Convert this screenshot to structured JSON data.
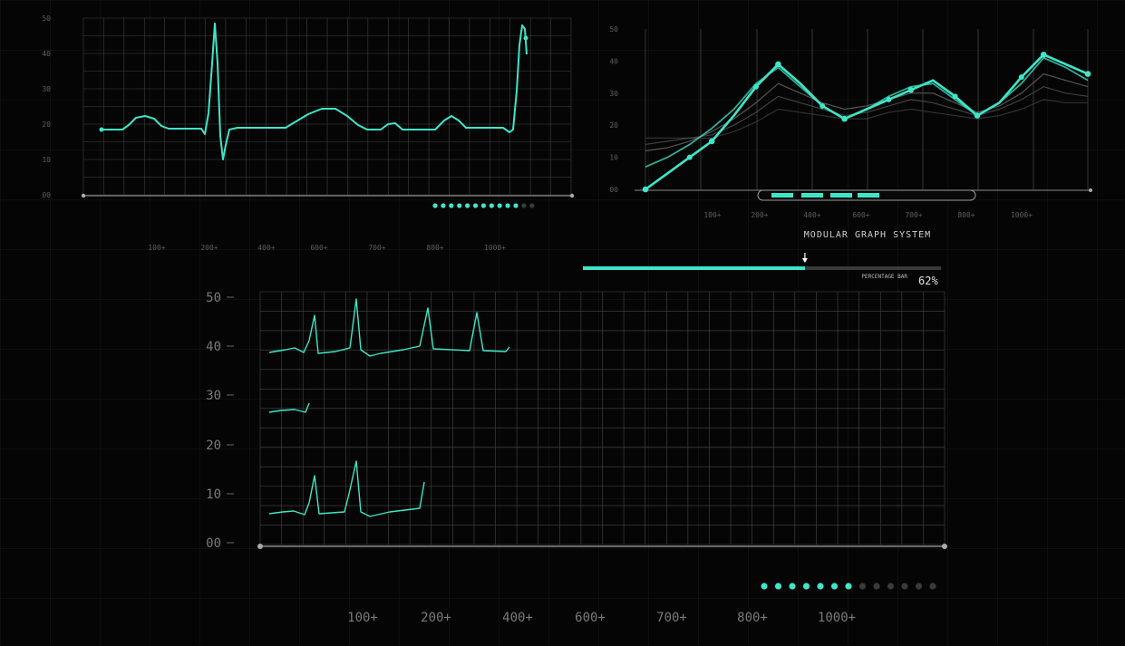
{
  "colors": {
    "accent": "#3ee6c8",
    "grid": "#8a8a8a",
    "dim": "#444444",
    "background": "#050505"
  },
  "title": "MODULAR GRAPH SYSTEM",
  "percentage_bar": {
    "label": "PERCENTAGE BAR",
    "value": 62,
    "display": "62%"
  },
  "chart_data": [
    {
      "type": "line",
      "yticks": [
        "00",
        "10",
        "20",
        "30",
        "40",
        "50"
      ],
      "xticks": [
        "100+",
        "200+",
        "400+",
        "600+",
        "700+",
        "800+",
        "1000+"
      ],
      "ylim": [
        0,
        50
      ],
      "indicator": {
        "total": 13,
        "active": 11
      }
    },
    {
      "type": "line",
      "yticks": [
        "00",
        "10",
        "20",
        "30",
        "40",
        "50"
      ],
      "xticks": [
        "100+",
        "200+",
        "400+",
        "600+",
        "700+",
        "800+",
        "1000+"
      ],
      "ylim": [
        0,
        50
      ],
      "x": [
        0,
        1,
        2,
        3,
        4,
        5,
        6,
        7,
        8,
        9,
        10,
        11,
        12,
        13,
        14,
        15,
        16,
        17,
        18,
        19,
        20
      ],
      "series": [
        {
          "values": [
            0,
            5,
            10,
            15,
            23,
            32,
            39,
            33,
            26,
            22,
            25,
            28,
            31,
            34,
            29,
            23,
            27,
            35,
            42,
            39,
            36
          ]
        },
        {
          "values": [
            7,
            10,
            14,
            19,
            25,
            33,
            38,
            32,
            26,
            22,
            25,
            29,
            32,
            33,
            28,
            23,
            27,
            33,
            41,
            38,
            34
          ]
        },
        {
          "values": [
            12,
            13,
            15,
            18,
            22,
            27,
            33,
            30,
            27,
            25,
            26,
            28,
            30,
            30,
            27,
            24,
            26,
            30,
            36,
            34,
            32
          ]
        },
        {
          "values": [
            14,
            15,
            16,
            17,
            20,
            24,
            29,
            27,
            25,
            23,
            24,
            26,
            28,
            27,
            25,
            23,
            25,
            28,
            32,
            30,
            29
          ]
        },
        {
          "values": [
            16,
            16,
            16,
            16,
            18,
            21,
            25,
            24,
            23,
            22,
            22,
            24,
            25,
            24,
            23,
            22,
            23,
            25,
            28,
            27,
            27
          ]
        }
      ]
    },
    {
      "type": "line",
      "yticks": [
        "00",
        "10",
        "20",
        "30",
        "40",
        "50"
      ],
      "xticks": [
        "100+",
        "200+",
        "400+",
        "600+",
        "700+",
        "800+",
        "1000+"
      ],
      "ylim": [
        0,
        50
      ],
      "indicator": {
        "total": 13,
        "active": 7
      }
    }
  ]
}
